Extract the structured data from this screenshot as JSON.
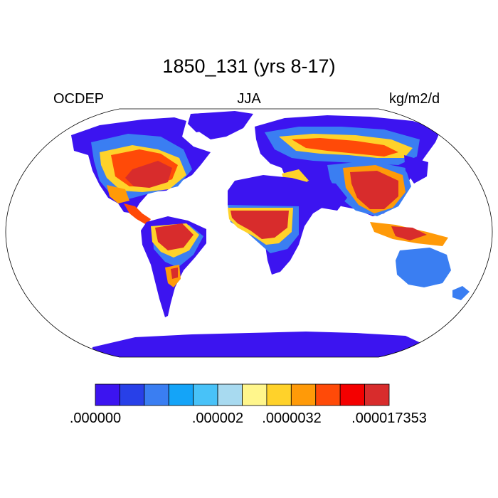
{
  "title": "1850_131 (yrs 8-17)",
  "left_label": "OCDEP",
  "center_label": "JJA",
  "right_label": "kg/m2/d",
  "colorbar": {
    "colors": [
      "#3c14f0",
      "#2840e8",
      "#3a7ef2",
      "#14a4f8",
      "#48c2f8",
      "#a8daf0",
      "#fff68c",
      "#ffd22a",
      "#ff9a08",
      "#ff4a08",
      "#f40000",
      "#d82c2c"
    ],
    "labels": [
      ".000000",
      ".000002",
      ".0000032",
      ".000017353"
    ]
  }
}
